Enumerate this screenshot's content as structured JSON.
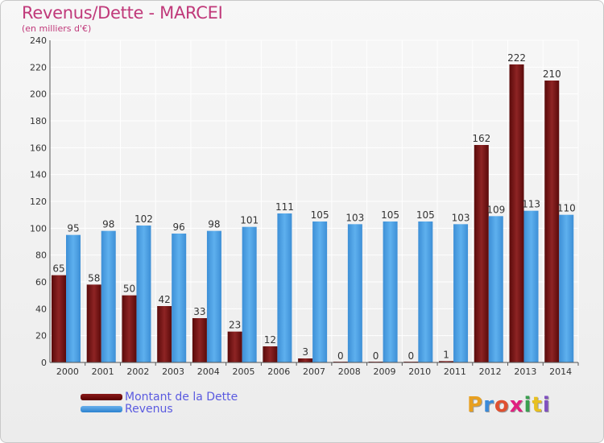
{
  "header": {
    "title": "Revenus/Dette - MARCEI",
    "subtitle": "(en milliers d'€)"
  },
  "legend": {
    "debt_label": "Montant de la Dette",
    "revenue_label": "Revenus"
  },
  "logo": {
    "letters": [
      "P",
      "r",
      "o",
      "x",
      "i",
      "t",
      "i"
    ],
    "colors": [
      "#e8a020",
      "#3a8ad8",
      "#e05030",
      "#e02080",
      "#3aa050",
      "#e8c020",
      "#8050c0"
    ]
  },
  "chart_data": {
    "type": "bar",
    "categories": [
      "2000",
      "2001",
      "2002",
      "2003",
      "2004",
      "2005",
      "2006",
      "2007",
      "2008",
      "2009",
      "2010",
      "2011",
      "2012",
      "2013",
      "2014"
    ],
    "series": [
      {
        "name": "Montant de la Dette",
        "values": [
          65,
          58,
          50,
          42,
          33,
          23,
          12,
          3,
          0,
          0,
          0,
          1,
          162,
          222,
          210
        ],
        "color": "#7a1414"
      },
      {
        "name": "Revenus",
        "values": [
          95,
          98,
          102,
          96,
          98,
          101,
          111,
          105,
          103,
          105,
          105,
          103,
          109,
          113,
          110
        ],
        "color": "#4da3e6"
      }
    ],
    "ylim": [
      0,
      240
    ],
    "yticks": [
      0,
      20,
      40,
      60,
      80,
      100,
      120,
      140,
      160,
      180,
      200,
      220,
      240
    ],
    "grid": true,
    "legend_position": "bottom-left"
  }
}
